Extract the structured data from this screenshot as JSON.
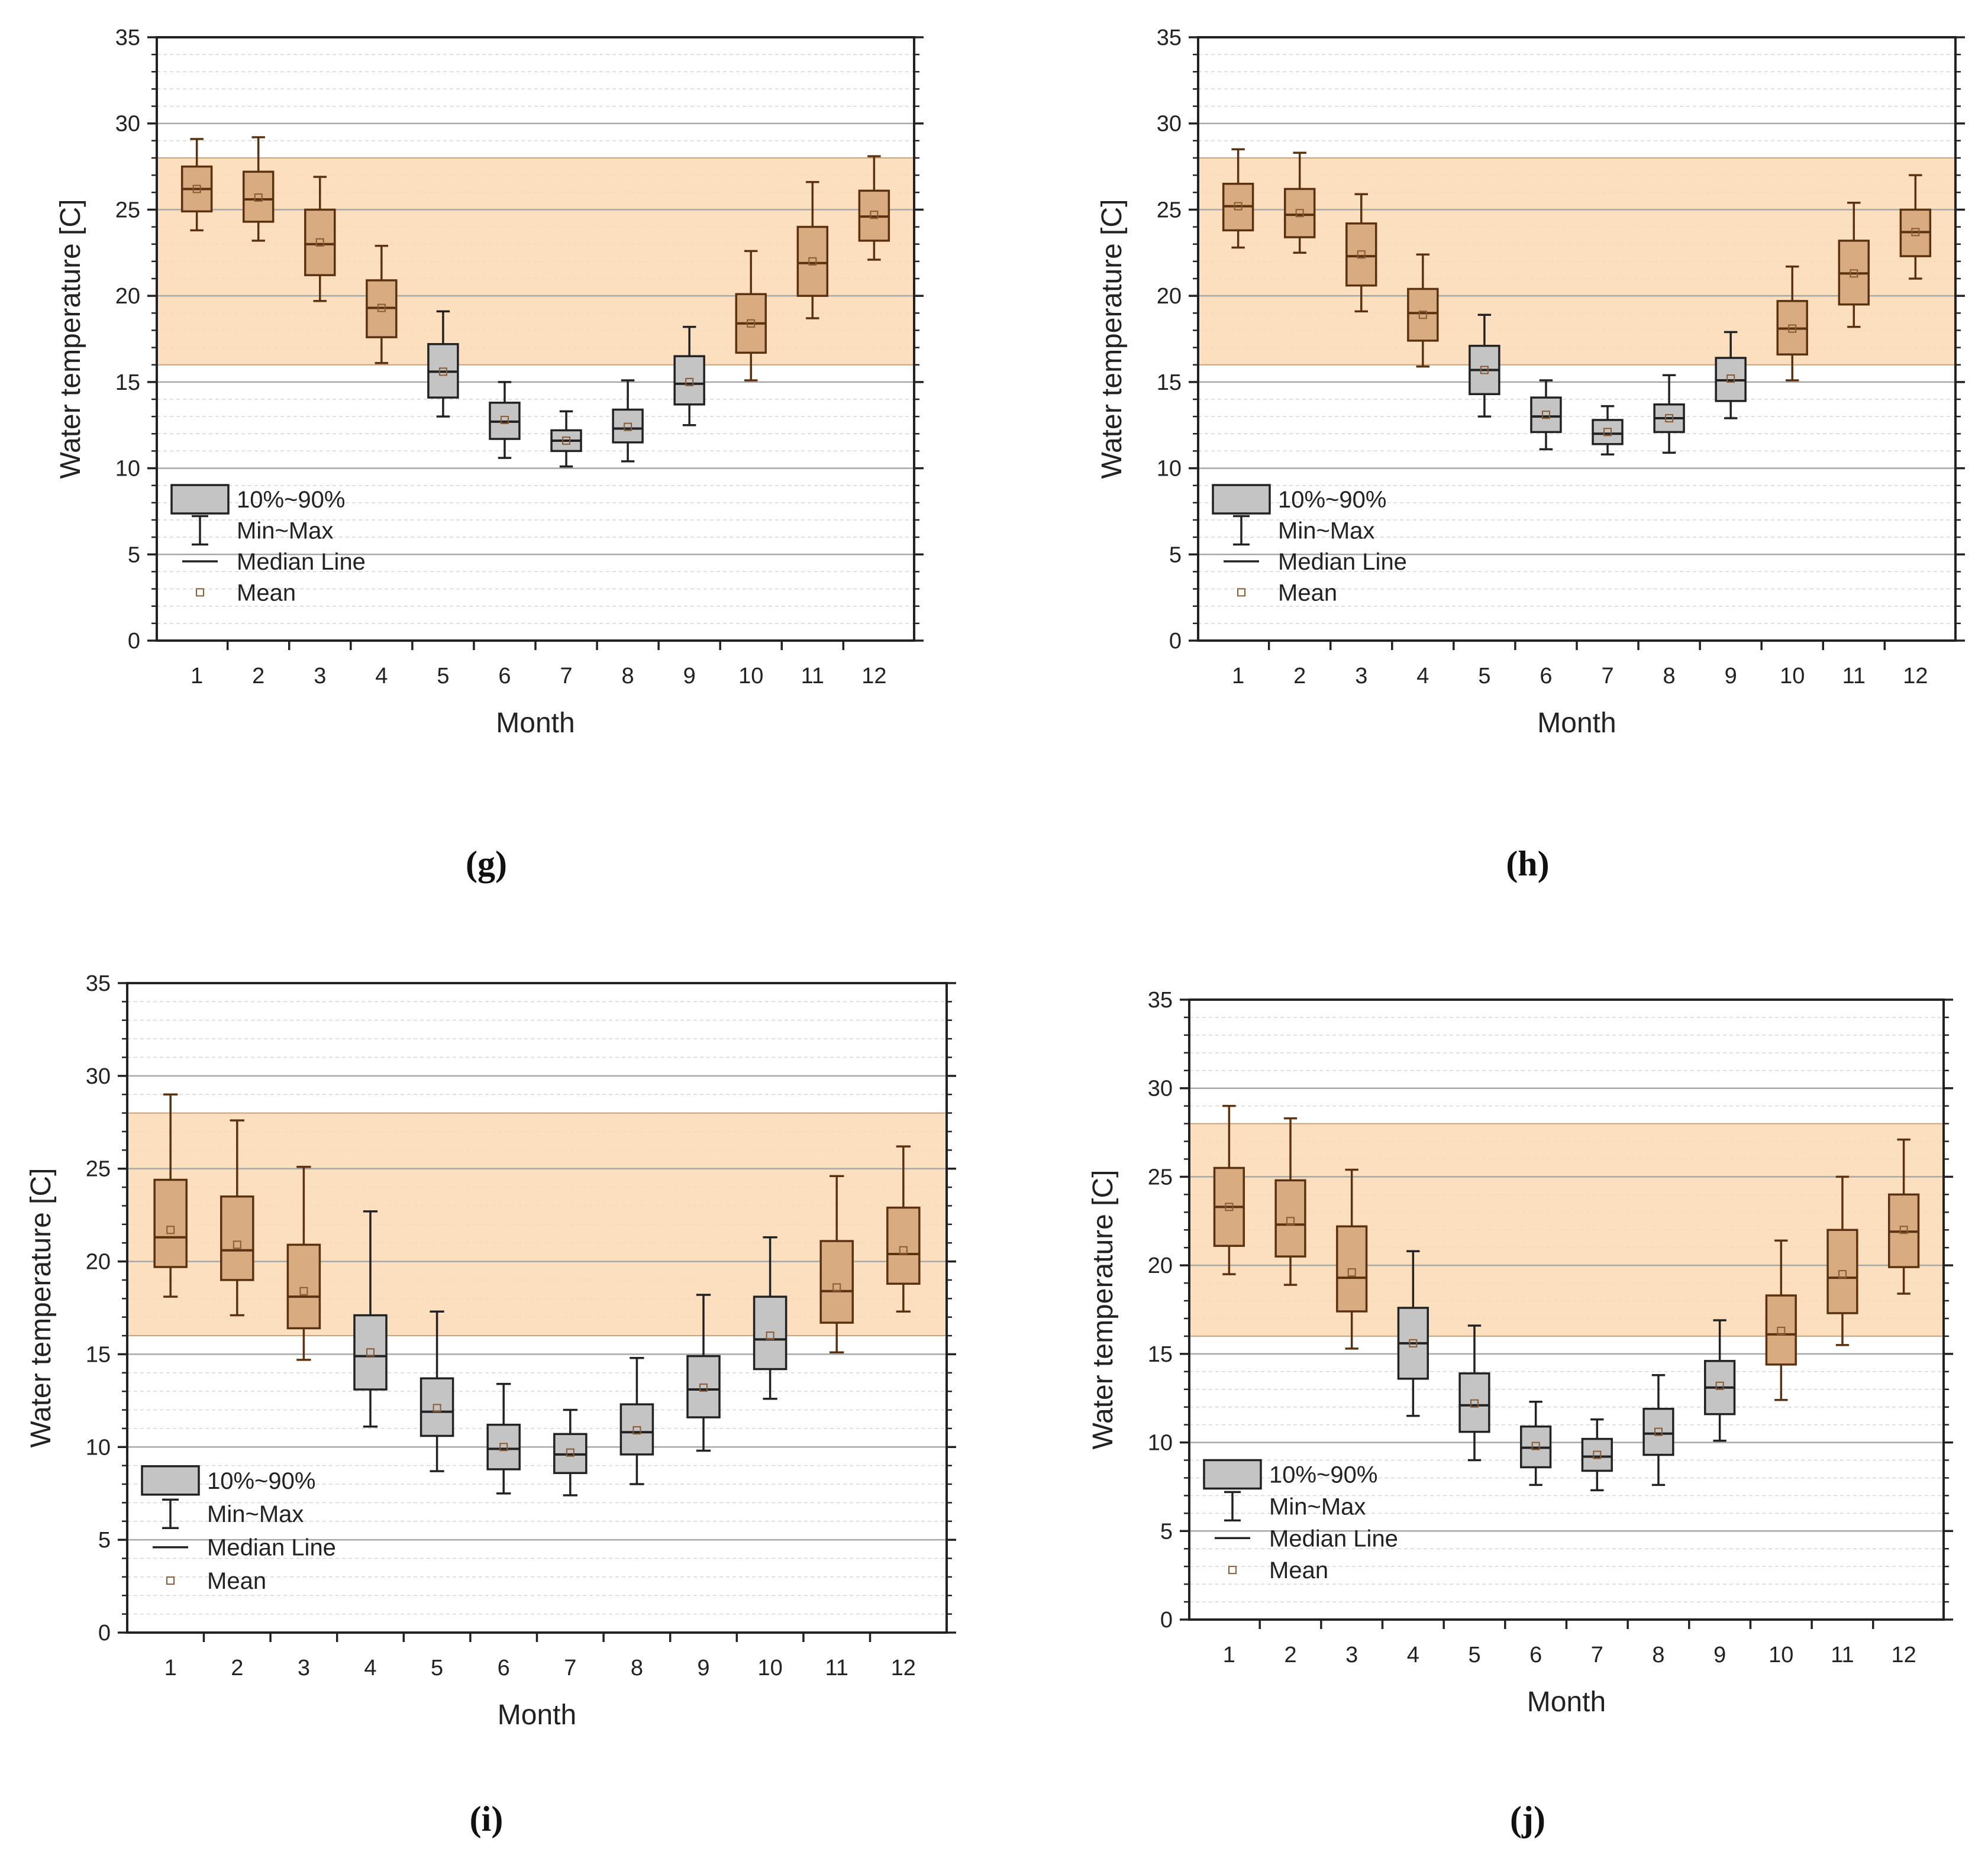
{
  "figure": {
    "legend": {
      "box_label": "10%~90%",
      "whisker_label": "Min~Max",
      "median_label": "Median Line",
      "mean_label": "Mean"
    },
    "colors": {
      "band_fill": "#fbd9b3",
      "box_in_band": "#d9ab80",
      "box_out_band": "#c4c4c4",
      "box_stroke_in_band": "#5a3210",
      "box_stroke_out_band": "#222222",
      "mean_marker": "#8a5a33"
    }
  },
  "chart_data": [
    {
      "type": "box",
      "panel_label": "(g)",
      "xlabel": "Month",
      "ylabel": "Water temperature [C]",
      "ylim": [
        0,
        35
      ],
      "yticks": [
        0,
        5,
        10,
        15,
        20,
        25,
        30,
        35
      ],
      "categories": [
        "1",
        "2",
        "3",
        "4",
        "5",
        "6",
        "7",
        "8",
        "9",
        "10",
        "11",
        "12"
      ],
      "shaded_band": [
        16,
        28
      ],
      "boxes": [
        {
          "min": 23.8,
          "p10": 24.9,
          "median": 26.2,
          "p90": 27.5,
          "max": 29.1,
          "mean": 26.2
        },
        {
          "min": 23.2,
          "p10": 24.3,
          "median": 25.6,
          "p90": 27.2,
          "max": 29.2,
          "mean": 25.7
        },
        {
          "min": 19.7,
          "p10": 21.2,
          "median": 23.0,
          "p90": 25.0,
          "max": 26.9,
          "mean": 23.1
        },
        {
          "min": 16.1,
          "p10": 17.6,
          "median": 19.3,
          "p90": 20.9,
          "max": 22.9,
          "mean": 19.3
        },
        {
          "min": 13.0,
          "p10": 14.1,
          "median": 15.6,
          "p90": 17.2,
          "max": 19.1,
          "mean": 15.6
        },
        {
          "min": 10.6,
          "p10": 11.7,
          "median": 12.7,
          "p90": 13.8,
          "max": 15.0,
          "mean": 12.8
        },
        {
          "min": 10.1,
          "p10": 11.0,
          "median": 11.6,
          "p90": 12.2,
          "max": 13.3,
          "mean": 11.6
        },
        {
          "min": 10.4,
          "p10": 11.5,
          "median": 12.3,
          "p90": 13.4,
          "max": 15.1,
          "mean": 12.4
        },
        {
          "min": 12.5,
          "p10": 13.7,
          "median": 14.9,
          "p90": 16.5,
          "max": 18.2,
          "mean": 15.0
        },
        {
          "min": 15.1,
          "p10": 16.7,
          "median": 18.4,
          "p90": 20.1,
          "max": 22.6,
          "mean": 18.4
        },
        {
          "min": 18.7,
          "p10": 20.0,
          "median": 21.9,
          "p90": 24.0,
          "max": 26.6,
          "mean": 22.0
        },
        {
          "min": 22.1,
          "p10": 23.2,
          "median": 24.6,
          "p90": 26.1,
          "max": 28.1,
          "mean": 24.7
        }
      ]
    },
    {
      "type": "box",
      "panel_label": "(h)",
      "xlabel": "Month",
      "ylabel": "Water temperature [C]",
      "ylim": [
        0,
        35
      ],
      "yticks": [
        0,
        5,
        10,
        15,
        20,
        25,
        30,
        35
      ],
      "categories": [
        "1",
        "2",
        "3",
        "4",
        "5",
        "6",
        "7",
        "8",
        "9",
        "10",
        "11",
        "12"
      ],
      "shaded_band": [
        16,
        28
      ],
      "boxes": [
        {
          "min": 22.8,
          "p10": 23.8,
          "median": 25.2,
          "p90": 26.5,
          "max": 28.5,
          "mean": 25.2
        },
        {
          "min": 22.5,
          "p10": 23.4,
          "median": 24.7,
          "p90": 26.2,
          "max": 28.3,
          "mean": 24.8
        },
        {
          "min": 19.1,
          "p10": 20.6,
          "median": 22.3,
          "p90": 24.2,
          "max": 25.9,
          "mean": 22.4
        },
        {
          "min": 15.9,
          "p10": 17.4,
          "median": 19.0,
          "p90": 20.4,
          "max": 22.4,
          "mean": 18.9
        },
        {
          "min": 13.0,
          "p10": 14.3,
          "median": 15.7,
          "p90": 17.1,
          "max": 18.9,
          "mean": 15.7
        },
        {
          "min": 11.1,
          "p10": 12.1,
          "median": 13.0,
          "p90": 14.1,
          "max": 15.1,
          "mean": 13.1
        },
        {
          "min": 10.8,
          "p10": 11.4,
          "median": 12.0,
          "p90": 12.8,
          "max": 13.6,
          "mean": 12.1
        },
        {
          "min": 10.9,
          "p10": 12.1,
          "median": 12.9,
          "p90": 13.7,
          "max": 15.4,
          "mean": 12.9
        },
        {
          "min": 12.9,
          "p10": 13.9,
          "median": 15.1,
          "p90": 16.4,
          "max": 17.9,
          "mean": 15.2
        },
        {
          "min": 15.1,
          "p10": 16.6,
          "median": 18.1,
          "p90": 19.7,
          "max": 21.7,
          "mean": 18.1
        },
        {
          "min": 18.2,
          "p10": 19.5,
          "median": 21.3,
          "p90": 23.2,
          "max": 25.4,
          "mean": 21.3
        },
        {
          "min": 21.0,
          "p10": 22.3,
          "median": 23.7,
          "p90": 25.0,
          "max": 27.0,
          "mean": 23.7
        }
      ]
    },
    {
      "type": "box",
      "panel_label": "(i)",
      "xlabel": "Month",
      "ylabel": "Water temperature [C]",
      "ylim": [
        0,
        35
      ],
      "yticks": [
        0,
        5,
        10,
        15,
        20,
        25,
        30,
        35
      ],
      "categories": [
        "1",
        "2",
        "3",
        "4",
        "5",
        "6",
        "7",
        "8",
        "9",
        "10",
        "11",
        "12"
      ],
      "shaded_band": [
        16,
        28
      ],
      "boxes": [
        {
          "min": 18.1,
          "p10": 19.7,
          "median": 21.3,
          "p90": 24.4,
          "max": 29.0,
          "mean": 21.7
        },
        {
          "min": 17.1,
          "p10": 19.0,
          "median": 20.6,
          "p90": 23.5,
          "max": 27.6,
          "mean": 20.9
        },
        {
          "min": 14.7,
          "p10": 16.4,
          "median": 18.1,
          "p90": 20.9,
          "max": 25.1,
          "mean": 18.4
        },
        {
          "min": 11.1,
          "p10": 13.1,
          "median": 14.9,
          "p90": 17.1,
          "max": 22.7,
          "mean": 15.1
        },
        {
          "min": 8.7,
          "p10": 10.6,
          "median": 11.9,
          "p90": 13.7,
          "max": 17.3,
          "mean": 12.1
        },
        {
          "min": 7.5,
          "p10": 8.8,
          "median": 9.9,
          "p90": 11.2,
          "max": 13.4,
          "mean": 10.0
        },
        {
          "min": 7.4,
          "p10": 8.6,
          "median": 9.6,
          "p90": 10.7,
          "max": 12.0,
          "mean": 9.7
        },
        {
          "min": 8.0,
          "p10": 9.6,
          "median": 10.8,
          "p90": 12.3,
          "max": 14.8,
          "mean": 10.9
        },
        {
          "min": 9.8,
          "p10": 11.6,
          "median": 13.1,
          "p90": 14.9,
          "max": 18.2,
          "mean": 13.2
        },
        {
          "min": 12.6,
          "p10": 14.2,
          "median": 15.8,
          "p90": 18.1,
          "max": 21.3,
          "mean": 16.0
        },
        {
          "min": 15.1,
          "p10": 16.7,
          "median": 18.4,
          "p90": 21.1,
          "max": 24.6,
          "mean": 18.6
        },
        {
          "min": 17.3,
          "p10": 18.8,
          "median": 20.4,
          "p90": 22.9,
          "max": 26.2,
          "mean": 20.6
        }
      ]
    },
    {
      "type": "box",
      "panel_label": "(j)",
      "xlabel": "Month",
      "ylabel": "Water temperature [C]",
      "ylim": [
        0,
        35
      ],
      "yticks": [
        0,
        5,
        10,
        15,
        20,
        25,
        30,
        35
      ],
      "categories": [
        "1",
        "2",
        "3",
        "4",
        "5",
        "6",
        "7",
        "8",
        "9",
        "10",
        "11",
        "12"
      ],
      "shaded_band": [
        16,
        28
      ],
      "boxes": [
        {
          "min": 19.5,
          "p10": 21.1,
          "median": 23.3,
          "p90": 25.5,
          "max": 29.0,
          "mean": 23.3
        },
        {
          "min": 18.9,
          "p10": 20.5,
          "median": 22.3,
          "p90": 24.8,
          "max": 28.3,
          "mean": 22.5
        },
        {
          "min": 15.3,
          "p10": 17.4,
          "median": 19.3,
          "p90": 22.2,
          "max": 25.4,
          "mean": 19.6
        },
        {
          "min": 11.5,
          "p10": 13.6,
          "median": 15.6,
          "p90": 17.6,
          "max": 20.8,
          "mean": 15.6
        },
        {
          "min": 9.0,
          "p10": 10.6,
          "median": 12.1,
          "p90": 13.9,
          "max": 16.6,
          "mean": 12.2
        },
        {
          "min": 7.6,
          "p10": 8.6,
          "median": 9.7,
          "p90": 10.9,
          "max": 12.3,
          "mean": 9.8
        },
        {
          "min": 7.3,
          "p10": 8.4,
          "median": 9.2,
          "p90": 10.2,
          "max": 11.3,
          "mean": 9.3
        },
        {
          "min": 7.6,
          "p10": 9.3,
          "median": 10.5,
          "p90": 11.9,
          "max": 13.8,
          "mean": 10.6
        },
        {
          "min": 10.1,
          "p10": 11.6,
          "median": 13.1,
          "p90": 14.6,
          "max": 16.9,
          "mean": 13.2
        },
        {
          "min": 12.4,
          "p10": 14.4,
          "median": 16.1,
          "p90": 18.3,
          "max": 21.4,
          "mean": 16.3
        },
        {
          "min": 15.5,
          "p10": 17.3,
          "median": 19.3,
          "p90": 22.0,
          "max": 25.0,
          "mean": 19.5
        },
        {
          "min": 18.4,
          "p10": 19.9,
          "median": 21.9,
          "p90": 24.0,
          "max": 27.1,
          "mean": 22.0
        }
      ]
    }
  ]
}
